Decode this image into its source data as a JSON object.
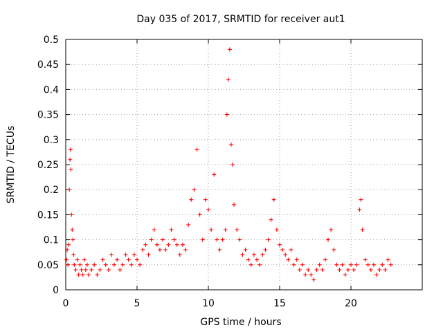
{
  "chart_data": {
    "type": "scatter",
    "title": "Day 035 of 2017, SRMTID for receiver aut1",
    "xlabel": "GPS time / hours",
    "ylabel": "SRMTID / TECUs",
    "xlim": [
      0,
      25
    ],
    "ylim": [
      0,
      0.5
    ],
    "xticks": [
      0,
      5,
      10,
      15,
      20
    ],
    "xtick_labels": [
      "0",
      "5",
      "10",
      "15",
      "20"
    ],
    "yticks": [
      0,
      0.05,
      0.1,
      0.15,
      0.2,
      0.25,
      0.3,
      0.35,
      0.4,
      0.45,
      0.5
    ],
    "ytick_labels": [
      "0",
      "0.05",
      "0.1",
      "0.15",
      "0.2",
      "0.25",
      "0.3",
      "0.35",
      "0.4",
      "0.45",
      "0.5"
    ],
    "grid": true,
    "marker": "+",
    "color": "#ff0000",
    "series": [
      {
        "name": "aut1",
        "points": [
          [
            0.05,
            0.06
          ],
          [
            0.1,
            0.08
          ],
          [
            0.15,
            0.05
          ],
          [
            0.2,
            0.09
          ],
          [
            0.25,
            0.2
          ],
          [
            0.3,
            0.26
          ],
          [
            0.33,
            0.28
          ],
          [
            0.36,
            0.24
          ],
          [
            0.4,
            0.15
          ],
          [
            0.45,
            0.12
          ],
          [
            0.5,
            0.1
          ],
          [
            0.55,
            0.07
          ],
          [
            0.6,
            0.05
          ],
          [
            0.7,
            0.04
          ],
          [
            0.8,
            0.06
          ],
          [
            0.9,
            0.03
          ],
          [
            1.0,
            0.05
          ],
          [
            1.1,
            0.04
          ],
          [
            1.2,
            0.03
          ],
          [
            1.3,
            0.06
          ],
          [
            1.4,
            0.04
          ],
          [
            1.5,
            0.05
          ],
          [
            1.6,
            0.03
          ],
          [
            1.8,
            0.04
          ],
          [
            2.0,
            0.05
          ],
          [
            2.2,
            0.03
          ],
          [
            2.4,
            0.04
          ],
          [
            2.6,
            0.06
          ],
          [
            2.8,
            0.05
          ],
          [
            3.0,
            0.04
          ],
          [
            3.2,
            0.07
          ],
          [
            3.4,
            0.05
          ],
          [
            3.6,
            0.06
          ],
          [
            3.8,
            0.04
          ],
          [
            4.0,
            0.05
          ],
          [
            4.2,
            0.07
          ],
          [
            4.4,
            0.06
          ],
          [
            4.6,
            0.05
          ],
          [
            4.8,
            0.07
          ],
          [
            5.0,
            0.06
          ],
          [
            5.2,
            0.05
          ],
          [
            5.4,
            0.08
          ],
          [
            5.6,
            0.09
          ],
          [
            5.8,
            0.07
          ],
          [
            6.0,
            0.1
          ],
          [
            6.2,
            0.12
          ],
          [
            6.4,
            0.09
          ],
          [
            6.6,
            0.08
          ],
          [
            6.8,
            0.1
          ],
          [
            7.0,
            0.08
          ],
          [
            7.2,
            0.09
          ],
          [
            7.4,
            0.12
          ],
          [
            7.6,
            0.1
          ],
          [
            7.8,
            0.09
          ],
          [
            8.0,
            0.07
          ],
          [
            8.2,
            0.09
          ],
          [
            8.4,
            0.08
          ],
          [
            8.6,
            0.13
          ],
          [
            8.8,
            0.18
          ],
          [
            9.0,
            0.2
          ],
          [
            9.2,
            0.28
          ],
          [
            9.4,
            0.15
          ],
          [
            9.6,
            0.1
          ],
          [
            9.8,
            0.18
          ],
          [
            10.0,
            0.16
          ],
          [
            10.2,
            0.12
          ],
          [
            10.4,
            0.23
          ],
          [
            10.6,
            0.1
          ],
          [
            10.8,
            0.08
          ],
          [
            11.0,
            0.1
          ],
          [
            11.2,
            0.12
          ],
          [
            11.3,
            0.35
          ],
          [
            11.4,
            0.42
          ],
          [
            11.5,
            0.48
          ],
          [
            11.6,
            0.29
          ],
          [
            11.7,
            0.25
          ],
          [
            11.8,
            0.17
          ],
          [
            12.0,
            0.12
          ],
          [
            12.2,
            0.1
          ],
          [
            12.4,
            0.07
          ],
          [
            12.6,
            0.08
          ],
          [
            12.8,
            0.06
          ],
          [
            13.0,
            0.05
          ],
          [
            13.2,
            0.07
          ],
          [
            13.4,
            0.06
          ],
          [
            13.6,
            0.05
          ],
          [
            13.8,
            0.07
          ],
          [
            14.0,
            0.08
          ],
          [
            14.2,
            0.1
          ],
          [
            14.4,
            0.14
          ],
          [
            14.6,
            0.18
          ],
          [
            14.8,
            0.12
          ],
          [
            15.0,
            0.09
          ],
          [
            15.2,
            0.08
          ],
          [
            15.4,
            0.07
          ],
          [
            15.6,
            0.06
          ],
          [
            15.8,
            0.08
          ],
          [
            16.0,
            0.05
          ],
          [
            16.2,
            0.06
          ],
          [
            16.4,
            0.04
          ],
          [
            16.6,
            0.05
          ],
          [
            16.8,
            0.03
          ],
          [
            17.0,
            0.04
          ],
          [
            17.2,
            0.03
          ],
          [
            17.4,
            0.02
          ],
          [
            17.6,
            0.04
          ],
          [
            17.8,
            0.05
          ],
          [
            18.0,
            0.04
          ],
          [
            18.2,
            0.06
          ],
          [
            18.4,
            0.1
          ],
          [
            18.6,
            0.12
          ],
          [
            18.8,
            0.08
          ],
          [
            19.0,
            0.05
          ],
          [
            19.2,
            0.04
          ],
          [
            19.4,
            0.05
          ],
          [
            19.6,
            0.03
          ],
          [
            19.8,
            0.04
          ],
          [
            20.0,
            0.05
          ],
          [
            20.2,
            0.04
          ],
          [
            20.4,
            0.05
          ],
          [
            20.6,
            0.16
          ],
          [
            20.7,
            0.18
          ],
          [
            20.8,
            0.12
          ],
          [
            21.0,
            0.06
          ],
          [
            21.2,
            0.05
          ],
          [
            21.4,
            0.04
          ],
          [
            21.6,
            0.05
          ],
          [
            21.8,
            0.03
          ],
          [
            22.0,
            0.04
          ],
          [
            22.2,
            0.05
          ],
          [
            22.4,
            0.04
          ],
          [
            22.6,
            0.06
          ],
          [
            22.8,
            0.05
          ]
        ]
      }
    ]
  }
}
